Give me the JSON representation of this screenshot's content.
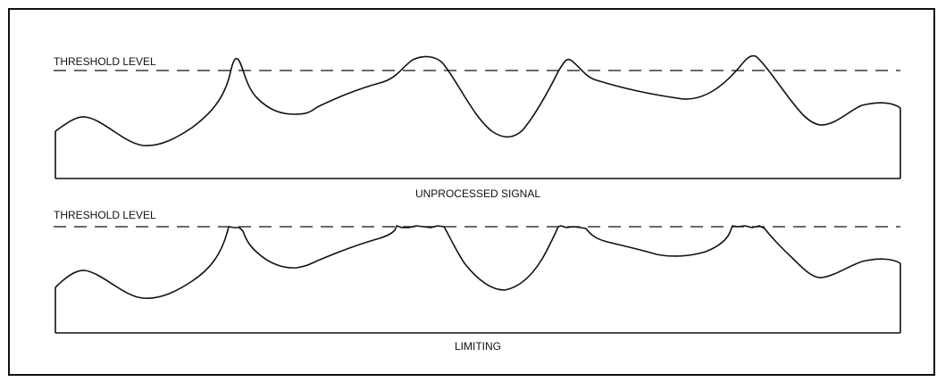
{
  "panels": [
    {
      "threshold_label": "THRESHOLD LEVEL",
      "caption": "UNPROCESSED SIGNAL"
    },
    {
      "threshold_label": "THRESHOLD LEVEL",
      "caption": "LIMITING"
    }
  ],
  "colors": {
    "line": "#111111",
    "background": "#ffffff"
  }
}
